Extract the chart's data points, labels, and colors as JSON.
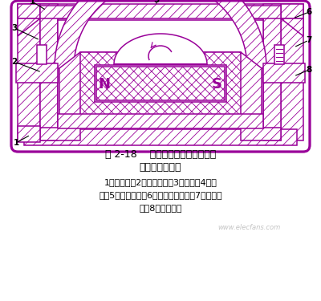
{
  "bg_color": "#ffffff",
  "dc": "#990099",
  "fig_caption_line1": "图 2-18    爪极式无刷交流发电机的",
  "fig_caption_line2": "结构原理及磁路",
  "fig_label_line1": "1－转子轴；2－磁轭托架；3－端盖；4－爪",
  "fig_label_line2": "极；5－定子铁心；6－非导磁联接环；7－路场绕",
  "fig_label_line3": "组；8－转子磁轭",
  "watermark": "www.elecfans.com",
  "lw": 1.1
}
